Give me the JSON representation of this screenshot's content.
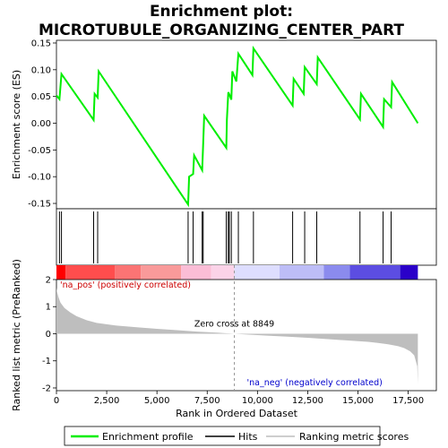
{
  "chart_data": {
    "type": "line",
    "title_line1": "Enrichment plot:",
    "title_line2": "MICROTUBULE_ORGANIZING_CENTER_PART",
    "es_panel": {
      "ylabel": "Enrichment score (ES)",
      "ylim": [
        -0.16,
        0.155
      ],
      "yticks": [
        -0.15,
        -0.1,
        -0.05,
        0.0,
        0.05,
        0.1,
        0.15
      ],
      "ytick_labels": [
        "-0.15",
        "-0.10",
        "-0.05",
        "0.00",
        "0.05",
        "0.10",
        "0.15"
      ],
      "series": [
        {
          "name": "Enrichment profile",
          "color": "#00ee00",
          "x": [
            0,
            150,
            250,
            1850,
            1900,
            2050,
            2100,
            6550,
            6600,
            6800,
            6850,
            7250,
            7300,
            7350,
            8450,
            8480,
            8550,
            8600,
            8700,
            8750,
            8950,
            9050,
            9750,
            9800,
            11750,
            11800,
            12300,
            12350,
            12950,
            13000,
            15100,
            15150,
            16250,
            16300,
            16650,
            16700,
            17980
          ],
          "y": [
            0.052,
            0.045,
            0.092,
            0.006,
            0.055,
            0.048,
            0.097,
            -0.152,
            -0.1,
            -0.095,
            -0.06,
            -0.088,
            -0.038,
            0.014,
            -0.046,
            0.007,
            0.058,
            0.054,
            0.044,
            0.097,
            0.078,
            0.13,
            0.09,
            0.14,
            0.033,
            0.083,
            0.055,
            0.105,
            0.073,
            0.123,
            0.007,
            0.055,
            -0.007,
            0.045,
            0.03,
            0.077,
            0.0
          ]
        }
      ]
    },
    "hits": [
      150,
      250,
      1850,
      2050,
      6550,
      6800,
      7250,
      7300,
      8450,
      8550,
      8600,
      8700,
      9050,
      9800,
      11750,
      12350,
      12950,
      15100,
      16250,
      16650
    ],
    "rank_panel": {
      "ylabel": "Ranked list metric (PreRanked)",
      "xlabel": "Rank in Ordered Dataset",
      "xlim": [
        0,
        18900
      ],
      "xticks": [
        0,
        2500,
        5000,
        7500,
        10000,
        12500,
        15000,
        17500
      ],
      "xtick_labels": [
        "0",
        "2,500",
        "5,000",
        "7,500",
        "10,000",
        "12,500",
        "15,000",
        "17,500"
      ],
      "ylim": [
        -2.1,
        2.0
      ],
      "yticks": [
        -2,
        -1,
        0,
        1,
        2
      ],
      "ytick_labels": [
        "-2",
        "-1",
        "0",
        "1",
        "2"
      ],
      "metric_profile": {
        "x": [
          0,
          30,
          100,
          200,
          400,
          700,
          1000,
          1500,
          2000,
          3000,
          4000,
          5000,
          6000,
          7000,
          8000,
          8849,
          9500,
          10500,
          11500,
          12500,
          13500,
          14500,
          15500,
          16000,
          16500,
          17000,
          17300,
          17600,
          17800,
          17950,
          17980
        ],
        "y": [
          1.7,
          1.55,
          1.35,
          1.15,
          0.95,
          0.78,
          0.65,
          0.5,
          0.4,
          0.3,
          0.24,
          0.18,
          0.13,
          0.08,
          0.04,
          0.0,
          -0.03,
          -0.07,
          -0.11,
          -0.15,
          -0.2,
          -0.25,
          -0.3,
          -0.34,
          -0.39,
          -0.46,
          -0.53,
          -0.65,
          -0.8,
          -1.2,
          -1.85
        ]
      },
      "zero_cross_label": "Zero cross at 8849",
      "zero_cross": 8849,
      "pos_label": "'na_pos' (positively correlated)",
      "neg_label": "'na_neg' (negatively correlated)"
    },
    "heatbar": [
      {
        "start": 0,
        "end": 450,
        "color": "#ff0000"
      },
      {
        "start": 450,
        "end": 2900,
        "color": "#ff4d4d"
      },
      {
        "start": 2900,
        "end": 4200,
        "color": "#fb7474"
      },
      {
        "start": 4200,
        "end": 6200,
        "color": "#f99a9a"
      },
      {
        "start": 6200,
        "end": 7700,
        "color": "#fbbdd6"
      },
      {
        "start": 7700,
        "end": 8849,
        "color": "#fbd3e8"
      },
      {
        "start": 8849,
        "end": 11100,
        "color": "#dedeff"
      },
      {
        "start": 11100,
        "end": 13300,
        "color": "#bdbdf7"
      },
      {
        "start": 13300,
        "end": 14600,
        "color": "#8b8bee"
      },
      {
        "start": 14600,
        "end": 17100,
        "color": "#5c4de2"
      },
      {
        "start": 17100,
        "end": 17980,
        "color": "#2a00c9"
      }
    ],
    "legend": [
      {
        "label": "Enrichment profile",
        "color": "#00ee00"
      },
      {
        "label": "Hits",
        "color": "#000000"
      },
      {
        "label": "Ranking metric scores",
        "color": "#bebebe"
      }
    ]
  }
}
